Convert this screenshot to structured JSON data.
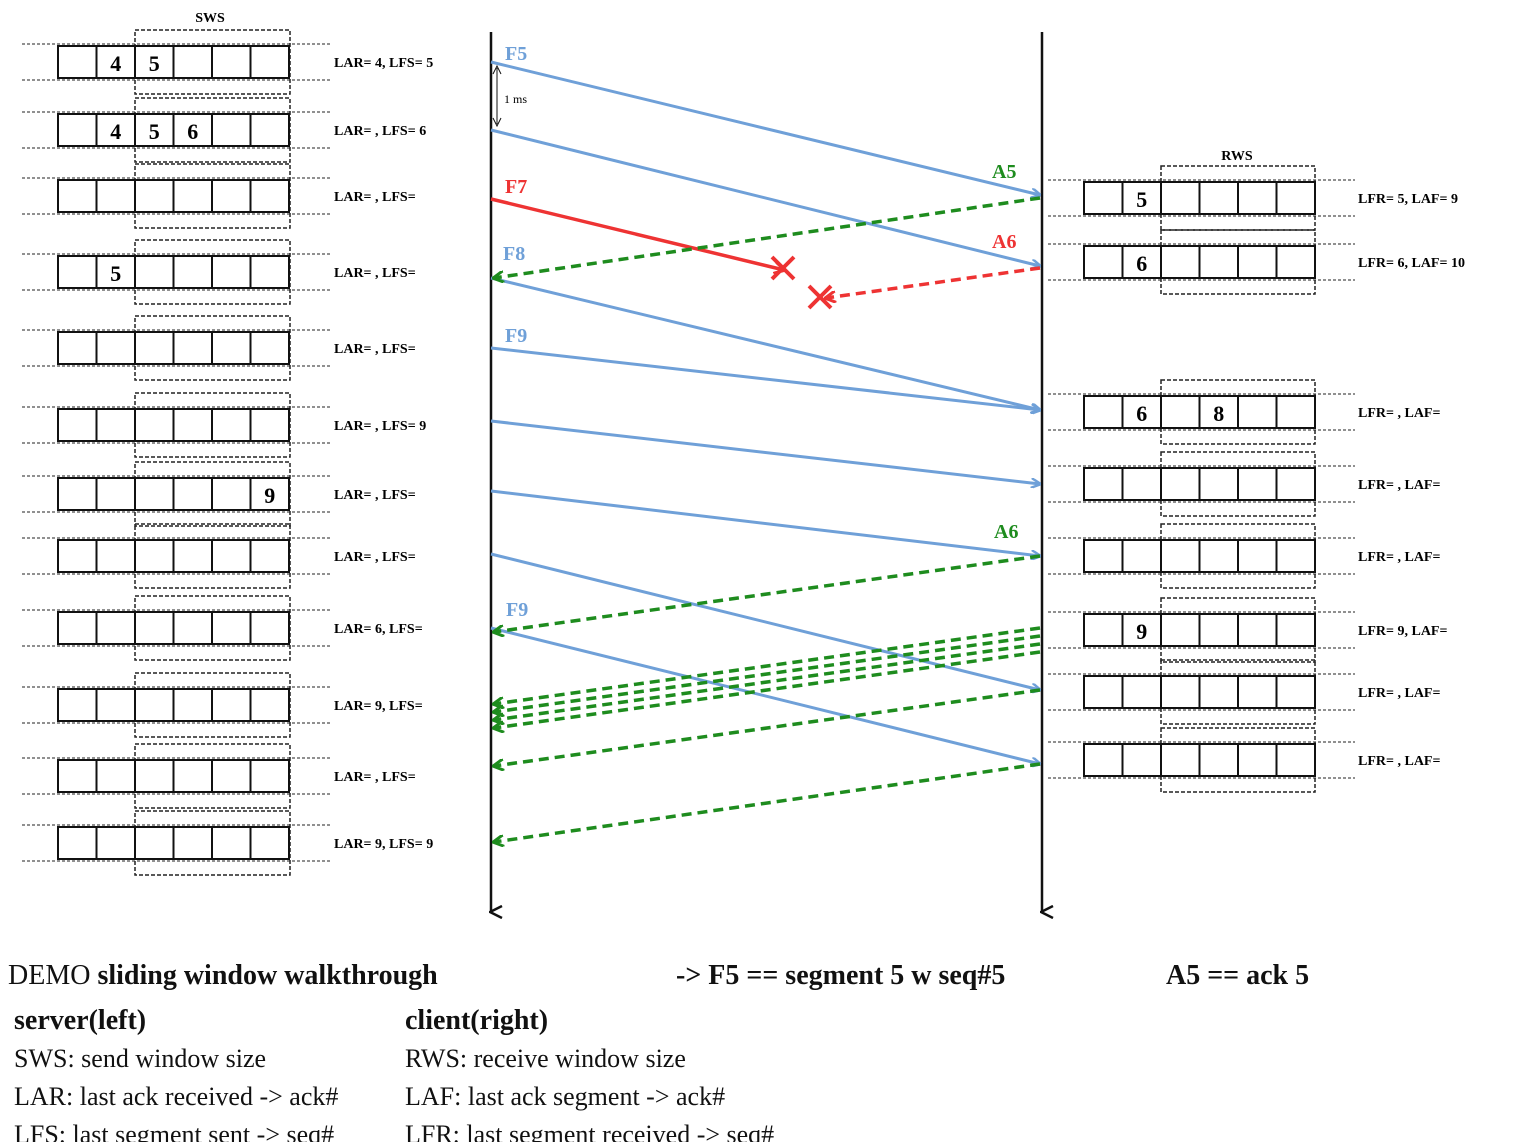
{
  "diagram": {
    "sws_label": "SWS",
    "rws_label": "RWS",
    "timing_label": "1 ms",
    "colors": {
      "frame": "#6fa0d8",
      "lost_frame": "#ee3333",
      "ack": "#1e8c1e",
      "lost_ack": "#ee3333",
      "timeline": "#111111"
    },
    "sender_rows": [
      {
        "label": "LAR= 4, LFS= 5",
        "cells": [
          "",
          "4",
          "5",
          "",
          "",
          ""
        ]
      },
      {
        "label": "LAR=   , LFS= 6",
        "cells": [
          "",
          "4",
          "5",
          "6",
          "",
          ""
        ]
      },
      {
        "label": "LAR=   , LFS=",
        "cells": [
          "",
          "",
          "",
          "",
          "",
          ""
        ]
      },
      {
        "label": "LAR=   , LFS=",
        "cells": [
          "",
          "5",
          "",
          "",
          "",
          ""
        ]
      },
      {
        "label": "LAR=   , LFS=",
        "cells": [
          "",
          "",
          "",
          "",
          "",
          ""
        ]
      },
      {
        "label": "LAR=   , LFS= 9",
        "cells": [
          "",
          "",
          "",
          "",
          "",
          ""
        ]
      },
      {
        "label": "LAR=   , LFS=",
        "cells": [
          "",
          "",
          "",
          "",
          "",
          "9"
        ]
      },
      {
        "label": "LAR=   , LFS=",
        "cells": [
          "",
          "",
          "",
          "",
          "",
          ""
        ]
      },
      {
        "label": "LAR= 6, LFS=",
        "cells": [
          "",
          "",
          "",
          "",
          "",
          ""
        ]
      },
      {
        "label": "LAR=  9, LFS=",
        "cells": [
          "",
          "",
          "",
          "",
          "",
          ""
        ]
      },
      {
        "label": "LAR=   , LFS=",
        "cells": [
          "",
          "",
          "",
          "",
          "",
          ""
        ]
      },
      {
        "label": "LAR= 9, LFS= 9",
        "cells": [
          "",
          "",
          "",
          "",
          "",
          ""
        ]
      }
    ],
    "receiver_rows": [
      {
        "label": "LFR= 5, LAF= 9",
        "cells": [
          "",
          "5",
          "",
          "",
          "",
          ""
        ]
      },
      {
        "label": "LFR= 6, LAF= 10",
        "cells": [
          "",
          "6",
          "",
          "",
          "",
          ""
        ]
      },
      {
        "label": "LFR=   , LAF=",
        "cells": [
          "",
          "6",
          "",
          "8",
          "",
          ""
        ]
      },
      {
        "label": "LFR=   , LAF=",
        "cells": [
          "",
          "",
          "",
          "",
          "",
          ""
        ]
      },
      {
        "label": "LFR=   , LAF=",
        "cells": [
          "",
          "",
          "",
          "",
          "",
          ""
        ]
      },
      {
        "label": "LFR= 9, LAF=",
        "cells": [
          "",
          "9",
          "",
          "",
          "",
          ""
        ]
      },
      {
        "label": "LFR=    , LAF=",
        "cells": [
          "",
          "",
          "",
          "",
          "",
          ""
        ]
      },
      {
        "label": "LFR=    , LAF=",
        "cells": [
          "",
          "",
          "",
          "",
          "",
          ""
        ]
      }
    ],
    "messages": [
      {
        "label": "F5",
        "kind": "frame"
      },
      {
        "label": "",
        "kind": "frame"
      },
      {
        "label": "F7",
        "kind": "lost_frame"
      },
      {
        "label": "F8",
        "kind": "frame"
      },
      {
        "label": "F9",
        "kind": "frame"
      },
      {
        "label": "",
        "kind": "frame"
      },
      {
        "label": "",
        "kind": "frame"
      },
      {
        "label": "",
        "kind": "frame"
      },
      {
        "label": "F9",
        "kind": "frame"
      },
      {
        "label": "A5",
        "kind": "ack"
      },
      {
        "label": "A6",
        "kind": "lost_ack"
      },
      {
        "label": "A6",
        "kind": "ack"
      },
      {
        "label": "",
        "kind": "ack"
      },
      {
        "label": "",
        "kind": "ack"
      },
      {
        "label": "",
        "kind": "ack"
      },
      {
        "label": "",
        "kind": "ack"
      },
      {
        "label": "",
        "kind": "ack"
      },
      {
        "label": "",
        "kind": "ack"
      }
    ]
  },
  "caption": {
    "demo_prefix": "DEMO ",
    "demo_title": "sliding window walkthrough",
    "frame_note": "-> F5 == segment 5 w seq#5",
    "ack_note": "A5 == ack 5",
    "server_heading": "server(left)",
    "server_lines": [
      "SWS: send window size",
      "LAR: last ack received -> ack#",
      "LFS: last segment sent -> seq#"
    ],
    "client_heading": "client(right)",
    "client_lines": [
      "RWS: receive window size",
      "LAF: last ack segment -> ack#",
      "LFR: last segment received -> seq#"
    ]
  }
}
